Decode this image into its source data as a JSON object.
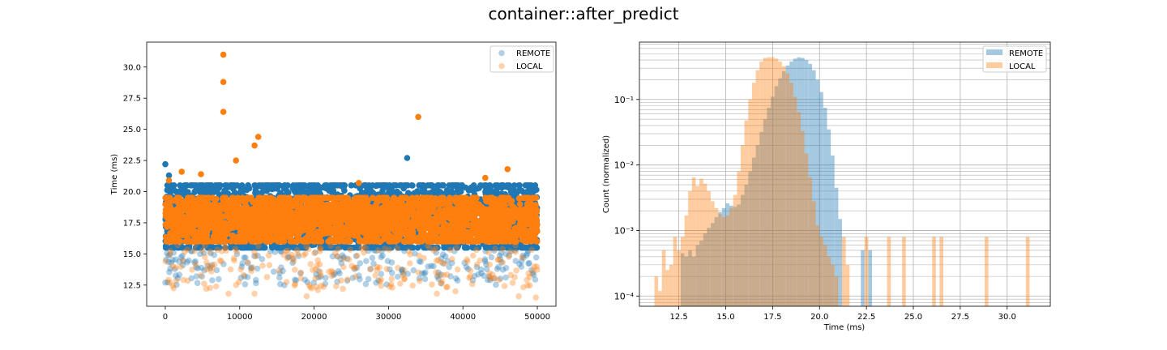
{
  "figure_title": "container::after_predict",
  "chart_data": [
    {
      "type": "scatter",
      "xlabel": "",
      "ylabel": "Time (ms)",
      "xlim": [
        -2500,
        52500
      ],
      "ylim": [
        10.8,
        32.0
      ],
      "xticks": [
        0,
        10000,
        20000,
        30000,
        40000,
        50000
      ],
      "xtick_labels": [
        "0",
        "10000",
        "20000",
        "30000",
        "40000",
        "50000"
      ],
      "yticks": [
        12.5,
        15.0,
        17.5,
        20.0,
        22.5,
        25.0,
        27.5,
        30.0
      ],
      "ytick_labels": [
        "12.5",
        "15.0",
        "17.5",
        "20.0",
        "22.5",
        "25.0",
        "27.5",
        "30.0"
      ],
      "legend_position": "top-right",
      "series": [
        {
          "name": "REMOTE",
          "color": "#1f77b4",
          "alpha": 0.35,
          "n_points_approx": 50000,
          "bulk_range_y": [
            15.5,
            20.5
          ],
          "outliers": [
            [
              0,
              22.2
            ],
            [
              500,
              21.3
            ],
            [
              32500,
              22.7
            ],
            [
              16000,
              12.5
            ],
            [
              21500,
              12.6
            ],
            [
              0,
              12.7
            ]
          ]
        },
        {
          "name": "LOCAL",
          "color": "#ff7f0e",
          "alpha": 0.35,
          "n_points_approx": 50000,
          "bulk_range_y": [
            16.0,
            19.5
          ],
          "outliers": [
            [
              7800,
              31.0
            ],
            [
              7800,
              28.8
            ],
            [
              7800,
              26.4
            ],
            [
              12000,
              23.7
            ],
            [
              12500,
              24.4
            ],
            [
              9500,
              22.5
            ],
            [
              34000,
              26.0
            ],
            [
              2200,
              21.6
            ],
            [
              4800,
              21.4
            ],
            [
              46000,
              21.8
            ],
            [
              500,
              20.9
            ],
            [
              43000,
              21.1
            ],
            [
              26000,
              20.7
            ],
            [
              20500,
              12.1
            ],
            [
              39000,
              12.0
            ],
            [
              5500,
              12.2
            ],
            [
              47500,
              11.6
            ],
            [
              19000,
              11.6
            ],
            [
              36500,
              11.8
            ],
            [
              8500,
              11.8
            ],
            [
              49800,
              11.5
            ],
            [
              30500,
              12.3
            ],
            [
              12000,
              11.8
            ]
          ]
        }
      ]
    },
    {
      "type": "histogram",
      "xlabel": "Time (ms)",
      "ylabel": "Count (normalized)",
      "xlim": [
        10.4,
        32.3
      ],
      "ylim_log": [
        7e-05,
        0.75
      ],
      "yscale": "log",
      "grid": true,
      "bin_width": 0.2,
      "xticks": [
        12.5,
        15.0,
        17.5,
        20.0,
        22.5,
        25.0,
        27.5,
        30.0
      ],
      "xtick_labels": [
        "12.5",
        "15.0",
        "17.5",
        "20.0",
        "22.5",
        "25.0",
        "27.5",
        "30.0"
      ],
      "ytick_labels": [
        "10⁻⁴",
        "10⁻³",
        "10⁻²",
        "10⁻¹"
      ],
      "legend_position": "top-right",
      "series": [
        {
          "name": "REMOTE",
          "color": "#1f77b4",
          "alpha": 0.4,
          "bins": [
            [
              12.6,
              0.00045
            ],
            [
              12.8,
              0.0004
            ],
            [
              13.0,
              0.0005
            ],
            [
              13.2,
              0.0004
            ],
            [
              13.4,
              0.0006
            ],
            [
              13.6,
              0.0007
            ],
            [
              13.8,
              0.0009
            ],
            [
              14.0,
              0.0011
            ],
            [
              14.2,
              0.0013
            ],
            [
              14.4,
              0.0016
            ],
            [
              14.6,
              0.0019
            ],
            [
              14.8,
              0.0022
            ],
            [
              15.0,
              0.0026
            ],
            [
              15.2,
              0.0024
            ],
            [
              15.4,
              0.0023
            ],
            [
              15.6,
              0.0025
            ],
            [
              15.8,
              0.0035
            ],
            [
              16.0,
              0.005
            ],
            [
              16.2,
              0.008
            ],
            [
              16.4,
              0.013
            ],
            [
              16.6,
              0.02
            ],
            [
              16.8,
              0.032
            ],
            [
              17.0,
              0.05
            ],
            [
              17.2,
              0.075
            ],
            [
              17.4,
              0.11
            ],
            [
              17.6,
              0.16
            ],
            [
              17.8,
              0.21
            ],
            [
              18.0,
              0.27
            ],
            [
              18.2,
              0.33
            ],
            [
              18.4,
              0.38
            ],
            [
              18.6,
              0.42
            ],
            [
              18.8,
              0.44
            ],
            [
              19.0,
              0.43
            ],
            [
              19.2,
              0.4
            ],
            [
              19.4,
              0.35
            ],
            [
              19.6,
              0.28
            ],
            [
              19.8,
              0.2
            ],
            [
              20.0,
              0.13
            ],
            [
              20.2,
              0.075
            ],
            [
              20.4,
              0.035
            ],
            [
              20.6,
              0.014
            ],
            [
              20.8,
              0.0045
            ],
            [
              21.0,
              0.0015
            ],
            [
              22.2,
              0.0005
            ],
            [
              22.6,
              0.0005
            ]
          ]
        },
        {
          "name": "LOCAL",
          "color": "#ff7f0e",
          "alpha": 0.4,
          "bins": [
            [
              11.2,
              0.0002
            ],
            [
              11.4,
              0.00012
            ],
            [
              11.6,
              0.0005
            ],
            [
              11.8,
              0.00025
            ],
            [
              12.0,
              0.0003
            ],
            [
              12.2,
              0.0008
            ],
            [
              12.4,
              0.0005
            ],
            [
              12.6,
              0.0008
            ],
            [
              12.8,
              0.0017
            ],
            [
              13.0,
              0.004
            ],
            [
              13.2,
              0.0065
            ],
            [
              13.4,
              0.0048
            ],
            [
              13.6,
              0.0062
            ],
            [
              13.8,
              0.0052
            ],
            [
              14.0,
              0.004
            ],
            [
              14.2,
              0.0028
            ],
            [
              14.4,
              0.0022
            ],
            [
              14.6,
              0.0018
            ],
            [
              14.8,
              0.0016
            ],
            [
              15.0,
              0.0017
            ],
            [
              15.2,
              0.0022
            ],
            [
              15.4,
              0.0035
            ],
            [
              15.6,
              0.008
            ],
            [
              15.8,
              0.02
            ],
            [
              16.0,
              0.048
            ],
            [
              16.2,
              0.1
            ],
            [
              16.4,
              0.18
            ],
            [
              16.6,
              0.28
            ],
            [
              16.8,
              0.38
            ],
            [
              17.0,
              0.43
            ],
            [
              17.2,
              0.44
            ],
            [
              17.4,
              0.44
            ],
            [
              17.6,
              0.42
            ],
            [
              17.8,
              0.38
            ],
            [
              18.0,
              0.32
            ],
            [
              18.2,
              0.25
            ],
            [
              18.4,
              0.18
            ],
            [
              18.6,
              0.11
            ],
            [
              18.8,
              0.065
            ],
            [
              19.0,
              0.033
            ],
            [
              19.2,
              0.015
            ],
            [
              19.4,
              0.0065
            ],
            [
              19.6,
              0.0028
            ],
            [
              19.8,
              0.0012
            ],
            [
              20.0,
              0.0008
            ],
            [
              20.2,
              0.0006
            ],
            [
              20.4,
              0.0004
            ],
            [
              20.6,
              0.0003
            ],
            [
              20.8,
              0.0002
            ],
            [
              21.2,
              0.0008
            ],
            [
              21.4,
              0.0003
            ],
            [
              22.4,
              0.0008
            ],
            [
              23.6,
              0.0008
            ],
            [
              24.4,
              0.0008
            ],
            [
              26.0,
              0.0008
            ],
            [
              26.4,
              0.0008
            ],
            [
              28.8,
              0.0008
            ],
            [
              31.0,
              0.0008
            ]
          ]
        }
      ]
    }
  ]
}
